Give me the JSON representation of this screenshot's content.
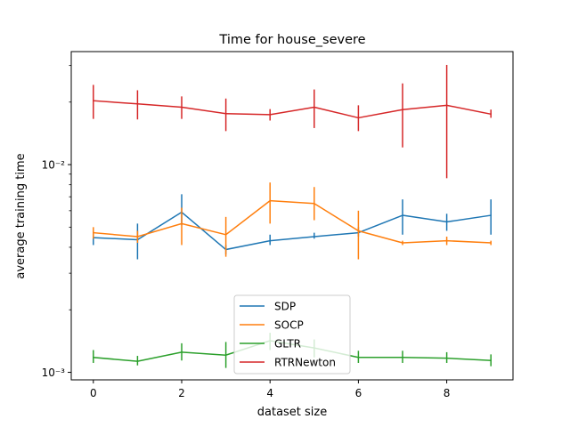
{
  "chart_data": {
    "type": "line",
    "title": "Time for house_severe",
    "xlabel": "dataset size",
    "ylabel": "average training time",
    "yscale": "log",
    "xlim": [
      -0.5,
      9.5
    ],
    "ylim": [
      0.00092,
      0.035
    ],
    "xticks": [
      0,
      2,
      4,
      6,
      8
    ],
    "xtick_labels": [
      "0",
      "2",
      "4",
      "6",
      "8"
    ],
    "yticks": [
      0.001,
      0.01
    ],
    "ytick_labels": [
      "10⁻³",
      "10⁻²"
    ],
    "grid": false,
    "legend_position": "lower center",
    "x": [
      0,
      1,
      2,
      3,
      4,
      5,
      6,
      7,
      8,
      9
    ],
    "series": [
      {
        "name": "SDP",
        "color": "#1f77b4",
        "values": [
          0.00445,
          0.00435,
          0.0059,
          0.0039,
          0.0043,
          0.0045,
          0.0047,
          0.0057,
          0.0053,
          0.0057
        ],
        "err_low": [
          0.0041,
          0.0035,
          0.0051,
          0.0037,
          0.0041,
          0.0044,
          0.0045,
          0.0046,
          0.0048,
          0.0046
        ],
        "err_high": [
          0.0048,
          0.0052,
          0.0072,
          0.0041,
          0.0046,
          0.0047,
          0.005,
          0.0068,
          0.0058,
          0.0068
        ]
      },
      {
        "name": "SOCP",
        "color": "#ff7f0e",
        "values": [
          0.0047,
          0.0045,
          0.0052,
          0.0046,
          0.0067,
          0.0065,
          0.0048,
          0.0042,
          0.0043,
          0.0042
        ],
        "err_low": [
          0.0044,
          0.0042,
          0.0041,
          0.0036,
          0.0052,
          0.0054,
          0.0035,
          0.0041,
          0.0041,
          0.0041
        ],
        "err_high": [
          0.005,
          0.0048,
          0.0062,
          0.0056,
          0.0082,
          0.0078,
          0.006,
          0.0043,
          0.0045,
          0.0043
        ]
      },
      {
        "name": "GLTR",
        "color": "#2ca02c",
        "values": [
          0.00118,
          0.00113,
          0.00125,
          0.00121,
          0.00142,
          0.00131,
          0.00118,
          0.00118,
          0.00117,
          0.00114
        ],
        "err_low": [
          0.00111,
          0.00108,
          0.00114,
          0.00105,
          0.00128,
          0.00118,
          0.00111,
          0.00111,
          0.00111,
          0.00107
        ],
        "err_high": [
          0.00128,
          0.0012,
          0.00138,
          0.0014,
          0.00155,
          0.00144,
          0.00127,
          0.00127,
          0.00125,
          0.00122
        ]
      },
      {
        "name": "RTRNewton",
        "color": "#d62728",
        "values": [
          0.0203,
          0.0196,
          0.0189,
          0.0176,
          0.0174,
          0.0189,
          0.0168,
          0.0184,
          0.0193,
          0.0175
        ],
        "err_low": [
          0.0166,
          0.0165,
          0.0166,
          0.0145,
          0.0163,
          0.015,
          0.0145,
          0.0121,
          0.0086,
          0.0168
        ],
        "err_high": [
          0.0242,
          0.0228,
          0.0213,
          0.0208,
          0.0185,
          0.023,
          0.0193,
          0.0246,
          0.0302,
          0.0184
        ]
      }
    ]
  }
}
